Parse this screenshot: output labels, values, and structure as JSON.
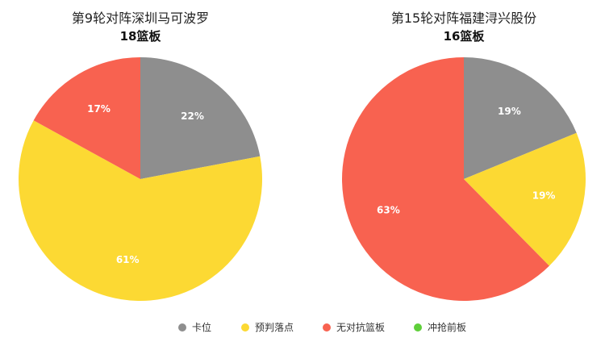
{
  "legend": [
    {
      "label": "卡位",
      "color": "#8e8e8e"
    },
    {
      "label": "预判落点",
      "color": "#fcd933"
    },
    {
      "label": "无对抗篮板",
      "color": "#f86250"
    },
    {
      "label": "冲抢前板",
      "color": "#5fcf3a"
    }
  ],
  "chart_data": [
    {
      "type": "pie",
      "title": "第9轮对阵深圳马可波罗",
      "subtitle": "18篮板",
      "slices": [
        {
          "label": "卡位",
          "value": 22,
          "text": "22%",
          "color": "#8e8e8e"
        },
        {
          "label": "预判落点",
          "value": 61,
          "text": "61%",
          "color": "#fcd933"
        },
        {
          "label": "无对抗篮板",
          "value": 17,
          "text": "17%",
          "color": "#f86250"
        }
      ]
    },
    {
      "type": "pie",
      "title": "第15轮对阵福建浔兴股份",
      "subtitle": "16篮板",
      "slices": [
        {
          "label": "卡位",
          "value": 19,
          "text": "19%",
          "color": "#8e8e8e"
        },
        {
          "label": "预判落点",
          "value": 19,
          "text": "19%",
          "color": "#fcd933"
        },
        {
          "label": "无对抗篮板",
          "value": 63,
          "text": "63%",
          "color": "#f86250"
        }
      ]
    }
  ]
}
